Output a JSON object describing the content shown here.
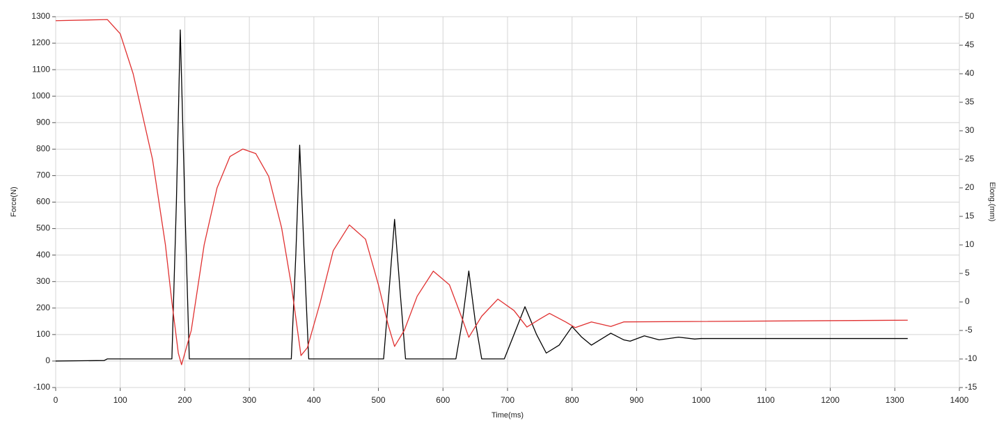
{
  "chart_data": {
    "type": "line",
    "xlabel": "Time(ms)",
    "ylabel": "Force(N)",
    "y2label": "Elong.(mm)",
    "xlim": [
      0,
      1400
    ],
    "xticks": [
      0,
      100,
      200,
      300,
      400,
      500,
      600,
      700,
      800,
      900,
      1000,
      1100,
      1200,
      1300,
      1400
    ],
    "ylim": [
      -100,
      1300
    ],
    "yticks": [
      -100,
      0,
      100,
      200,
      300,
      400,
      500,
      600,
      700,
      800,
      900,
      1000,
      1100,
      1200,
      1300
    ],
    "y2lim": [
      -15,
      50
    ],
    "y2ticks": [
      -15,
      -10,
      -5,
      0,
      5,
      10,
      15,
      20,
      25,
      30,
      35,
      40,
      45,
      50
    ],
    "grid": true,
    "series": [
      {
        "color": "#000000",
        "x": [
          0,
          75,
          80,
          100,
          150,
          180,
          187,
          193,
          200,
          207,
          250,
          300,
          365,
          372,
          378,
          385,
          392,
          450,
          508,
          516,
          525,
          534,
          542,
          600,
          620,
          630,
          640,
          650,
          660,
          695,
          710,
          727,
          745,
          760,
          780,
          800,
          815,
          830,
          860,
          880,
          890,
          912,
          935,
          965,
          990,
          1000,
          1320
        ],
        "values": [
          0,
          2,
          8,
          8,
          8,
          8,
          600,
          1250,
          600,
          8,
          8,
          8,
          8,
          400,
          815,
          400,
          8,
          8,
          8,
          250,
          535,
          250,
          8,
          8,
          8,
          150,
          340,
          150,
          8,
          8,
          100,
          205,
          100,
          30,
          60,
          130,
          90,
          60,
          105,
          80,
          75,
          95,
          80,
          90,
          83,
          85,
          85
        ]
      },
      {
        "color": "#e03030",
        "axis": "y2",
        "x": [
          0,
          80,
          100,
          120,
          150,
          170,
          180,
          190,
          195,
          210,
          230,
          250,
          270,
          290,
          310,
          330,
          350,
          365,
          380,
          390,
          410,
          430,
          455,
          480,
          500,
          515,
          525,
          540,
          560,
          585,
          610,
          630,
          640,
          660,
          685,
          710,
          730,
          750,
          765,
          790,
          805,
          830,
          860,
          880,
          1320
        ],
        "values": [
          49.3,
          49.5,
          47,
          40,
          25,
          10,
          0,
          -9,
          -11,
          -5,
          10,
          20,
          25.5,
          26.8,
          26,
          22,
          13,
          3,
          -9.4,
          -8,
          0,
          9,
          13.5,
          11,
          3,
          -4,
          -7.8,
          -5,
          1,
          5.4,
          3,
          -3,
          -6.2,
          -2.5,
          0.5,
          -1.5,
          -4.4,
          -3,
          -2,
          -3.5,
          -4.5,
          -3.5,
          -4.3,
          -3.5,
          -3.2
        ]
      }
    ]
  }
}
